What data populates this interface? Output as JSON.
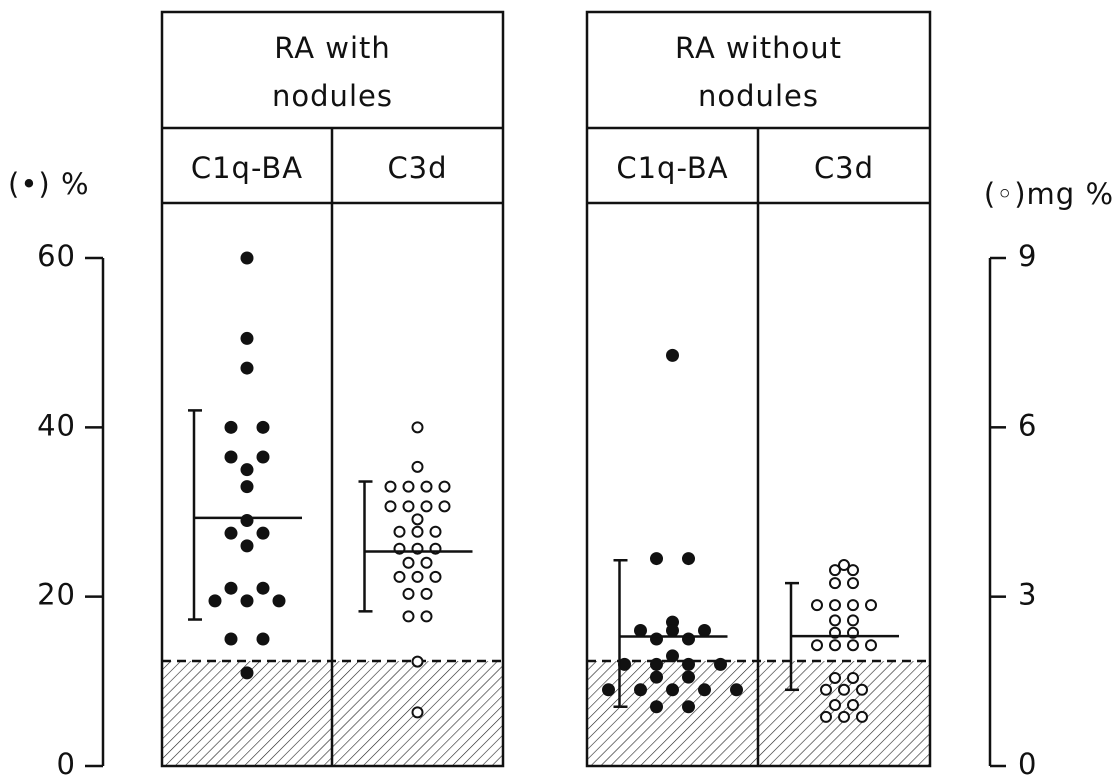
{
  "chart_data": {
    "type": "dot",
    "ylabel": "(•) %",
    "y2label": "(◦)mg %",
    "ylim": [
      0,
      60
    ],
    "yticks": [
      0,
      20,
      40,
      60
    ],
    "y2lim": [
      0,
      9
    ],
    "y2ticks": [
      0,
      3,
      6,
      9
    ],
    "reference_band": [
      0,
      12.4
    ],
    "panels": [
      {
        "title": [
          "RA  with",
          "nodules"
        ],
        "columns": [
          {
            "label": "C1q-BA",
            "marker": "filled",
            "axis": "y",
            "values": [
              60,
              50.5,
              47,
              40,
              40,
              36.5,
              36.5,
              35,
              33,
              29,
              27.5,
              27.5,
              26,
              21,
              21,
              19.5,
              19.5,
              19.5,
              15,
              15,
              11
            ],
            "mean": 29.3,
            "sd_range": [
              17.3,
              42
            ]
          },
          {
            "label": "C3d",
            "marker": "open",
            "axis": "y2",
            "values": [
              6.0,
              5.3,
              4.95,
              4.95,
              4.95,
              4.95,
              4.6,
              4.6,
              4.6,
              4.6,
              4.37,
              4.15,
              4.15,
              4.15,
              3.85,
              3.85,
              3.85,
              3.6,
              3.6,
              3.35,
              3.35,
              3.35,
              3.05,
              3.05,
              2.65,
              2.65,
              1.85,
              0.95
            ],
            "mean": 3.8,
            "sd_range": [
              2.74,
              5.04
            ]
          }
        ]
      },
      {
        "title": [
          "RA  without",
          "nodules"
        ],
        "columns": [
          {
            "label": "C1q-BA",
            "marker": "filled",
            "axis": "y",
            "values": [
              48.5,
              24.5,
              24.5,
              17,
              16,
              16,
              16,
              15,
              15,
              13,
              12,
              12,
              12,
              12,
              10.5,
              10.5,
              9,
              9,
              9,
              9,
              9,
              7,
              7
            ],
            "mean": 15.3,
            "sd_range": [
              7.0,
              24.3
            ]
          },
          {
            "label": "C3d",
            "marker": "open",
            "axis": "y2",
            "values": [
              3.56,
              3.47,
              3.47,
              3.24,
              3.24,
              2.85,
              2.85,
              2.85,
              2.85,
              2.58,
              2.58,
              2.36,
              2.36,
              2.14,
              2.14,
              2.14,
              2.14,
              1.56,
              1.56,
              1.35,
              1.35,
              1.35,
              1.08,
              1.08,
              0.87,
              0.87,
              0.87
            ],
            "mean": 2.3,
            "sd_range": [
              1.35,
              3.24
            ]
          }
        ]
      }
    ]
  }
}
